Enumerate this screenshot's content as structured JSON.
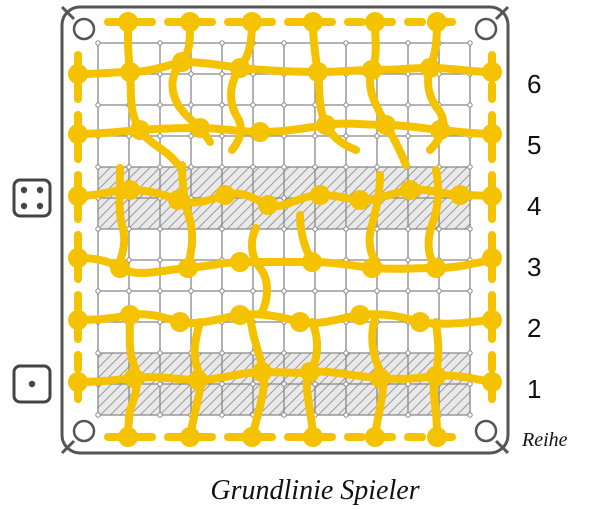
{
  "board": {
    "row_numbers": [
      "1",
      "2",
      "3",
      "4",
      "5",
      "6"
    ],
    "row_axis_label": "Reihe",
    "baseline_label": "Grundlinie Spieler",
    "dice": [
      {
        "name": "die-four",
        "pips": 4
      },
      {
        "name": "die-one",
        "pips": 1
      }
    ]
  },
  "colors": {
    "frame": "#555555",
    "grid": "#888888",
    "path": "#f5c200",
    "hatch": "#9a9a9a",
    "hatch_bg": "#e9e9e9",
    "background": "#ffffff"
  }
}
